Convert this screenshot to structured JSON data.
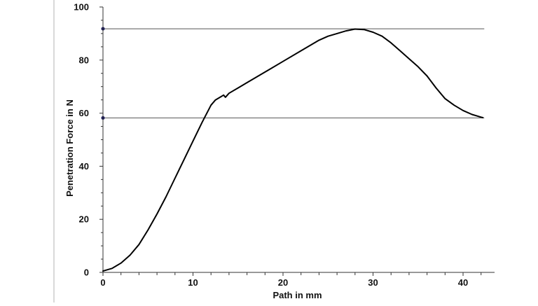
{
  "chart_data": {
    "type": "line",
    "xlabel": "Path in mm",
    "ylabel": "Penetration Force in N",
    "xlim": [
      0,
      43.5
    ],
    "ylim": [
      0,
      100
    ],
    "x_ticks": [
      0,
      10,
      20,
      30,
      40
    ],
    "y_ticks": [
      0,
      20,
      40,
      60,
      80,
      100
    ],
    "x_minor_step": 2,
    "y_minor_step": 5,
    "grid": false,
    "legend": "none",
    "reference_lines": [
      {
        "y": 91.8
      },
      {
        "y": 58.2
      }
    ],
    "series": [
      {
        "color": "#000000",
        "x": [
          0,
          1,
          2,
          3,
          4,
          5,
          6,
          7,
          8,
          9,
          10,
          11,
          12,
          12.5,
          13,
          13.4,
          13.6,
          14,
          15,
          16,
          18,
          20,
          22,
          24,
          25,
          26,
          27,
          28,
          29,
          30,
          31,
          32,
          33,
          34,
          35,
          36,
          37,
          38,
          39,
          40,
          41,
          42,
          42.2
        ],
        "y": [
          0.5,
          1.5,
          3.5,
          6.5,
          10.5,
          16,
          22,
          28.5,
          35.5,
          42.5,
          49.5,
          56.5,
          63,
          65,
          66,
          66.8,
          66,
          67.5,
          69.5,
          71.5,
          75.5,
          79.5,
          83.5,
          87.5,
          89,
          90,
          91,
          91.7,
          91.5,
          90.5,
          89,
          86.5,
          83.5,
          80.5,
          77.5,
          74,
          69.5,
          65.5,
          63,
          61,
          59.5,
          58.5,
          58.3
        ]
      }
    ]
  }
}
